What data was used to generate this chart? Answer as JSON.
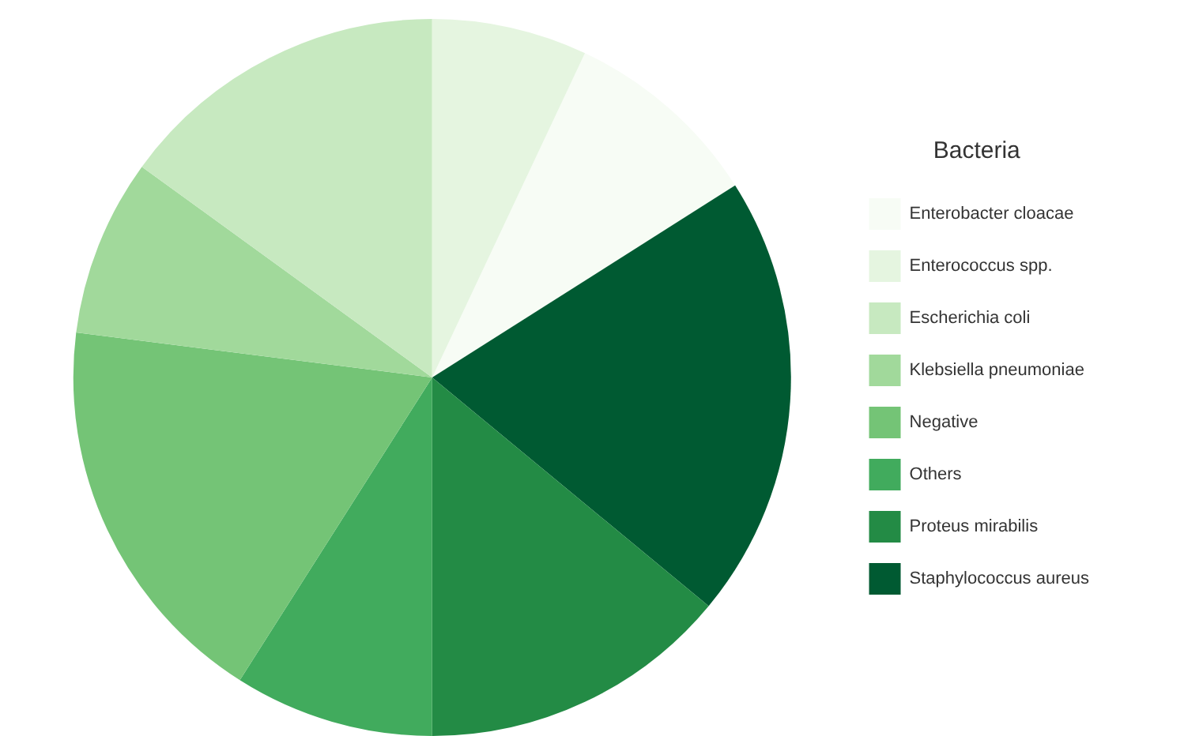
{
  "chart_data": {
    "type": "pie",
    "legend_title": "Bacteria",
    "legend": "right",
    "categories": [
      "Enterobacter cloacae",
      "Staphylococcus aureus",
      "Proteus mirabilis",
      "Others",
      "Negative",
      "Klebsiella pneumoniae",
      "Escherichia coli",
      "Enterococcus spp."
    ],
    "values": [
      9,
      20,
      14,
      9,
      18,
      8,
      15,
      7
    ],
    "colors": [
      "#f7fcf5",
      "#005a32",
      "#238b45",
      "#41ab5d",
      "#74c476",
      "#a1d99b",
      "#c7e9c0",
      "#e5f5e0"
    ]
  }
}
